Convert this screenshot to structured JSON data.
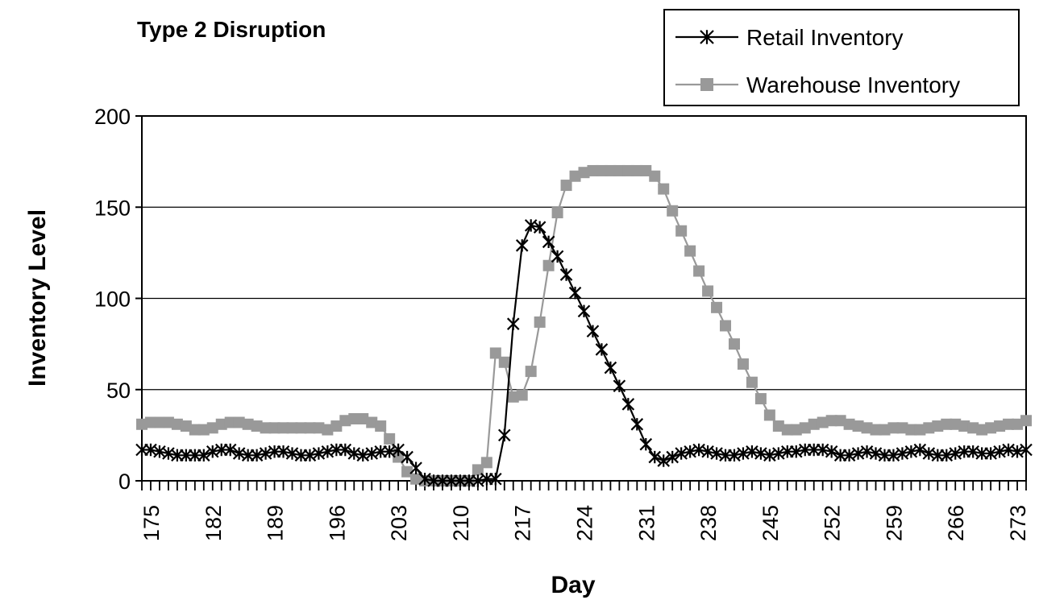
{
  "chart_data": {
    "type": "line",
    "title": "Type 2 Disruption",
    "xlabel": "Day",
    "ylabel": "Inventory Level",
    "xlim": [
      174,
      274
    ],
    "ylim": [
      0,
      200
    ],
    "yticks": [
      0,
      50,
      100,
      150,
      200
    ],
    "xticks": [
      175,
      182,
      189,
      196,
      203,
      210,
      217,
      224,
      231,
      238,
      245,
      252,
      259,
      266,
      273
    ],
    "grid": "horizontal",
    "legend": "top-right",
    "colors": {
      "retail": "#000000",
      "warehouse": "#999999"
    },
    "x": [
      174,
      175,
      176,
      177,
      178,
      179,
      180,
      181,
      182,
      183,
      184,
      185,
      186,
      187,
      188,
      189,
      190,
      191,
      192,
      193,
      194,
      195,
      196,
      197,
      198,
      199,
      200,
      201,
      202,
      203,
      204,
      205,
      206,
      207,
      208,
      209,
      210,
      211,
      212,
      213,
      214,
      215,
      216,
      217,
      218,
      219,
      220,
      221,
      222,
      223,
      224,
      225,
      226,
      227,
      228,
      229,
      230,
      231,
      232,
      233,
      234,
      235,
      236,
      237,
      238,
      239,
      240,
      241,
      242,
      243,
      244,
      245,
      246,
      247,
      248,
      249,
      250,
      251,
      252,
      253,
      254,
      255,
      256,
      257,
      258,
      259,
      260,
      261,
      262,
      263,
      264,
      265,
      266,
      267,
      268,
      269,
      270,
      271,
      272,
      273,
      274
    ],
    "series": [
      {
        "name": "Retail Inventory",
        "marker": "asterisk",
        "values": [
          17,
          17,
          16,
          15,
          14,
          14,
          14,
          14,
          16,
          17,
          17,
          15,
          14,
          14,
          15,
          16,
          16,
          15,
          14,
          14,
          15,
          16,
          17,
          17,
          15,
          14,
          15,
          16,
          16,
          17,
          13,
          7,
          1,
          0,
          0,
          0,
          0,
          0,
          0,
          1,
          1,
          25,
          86,
          129,
          140,
          139,
          131,
          123,
          113,
          103,
          93,
          82,
          72,
          62,
          52,
          42,
          31,
          20,
          13,
          11,
          13,
          15,
          16,
          17,
          16,
          15,
          14,
          14,
          15,
          16,
          15,
          14,
          15,
          16,
          16,
          17,
          17,
          17,
          16,
          14,
          14,
          15,
          16,
          15,
          14,
          14,
          15,
          16,
          17,
          15,
          14,
          14,
          15,
          16,
          16,
          15,
          15,
          16,
          17,
          16,
          17
        ]
      },
      {
        "name": "Warehouse Inventory",
        "marker": "square",
        "values": [
          31,
          32,
          32,
          32,
          31,
          30,
          28,
          28,
          29,
          31,
          32,
          32,
          31,
          30,
          29,
          29,
          29,
          29,
          29,
          29,
          29,
          28,
          30,
          33,
          34,
          34,
          32,
          30,
          23,
          13,
          5,
          1,
          0,
          0,
          0,
          0,
          0,
          0,
          6,
          10,
          70,
          65,
          46,
          47,
          60,
          87,
          118,
          147,
          162,
          167,
          169,
          170,
          170,
          170,
          170,
          170,
          170,
          170,
          167,
          160,
          148,
          137,
          126,
          115,
          104,
          95,
          85,
          75,
          64,
          54,
          45,
          36,
          30,
          28,
          28,
          29,
          31,
          32,
          33,
          33,
          31,
          30,
          29,
          28,
          28,
          29,
          29,
          28,
          28,
          29,
          30,
          31,
          31,
          30,
          29,
          28,
          29,
          30,
          31,
          31,
          33
        ]
      }
    ]
  }
}
